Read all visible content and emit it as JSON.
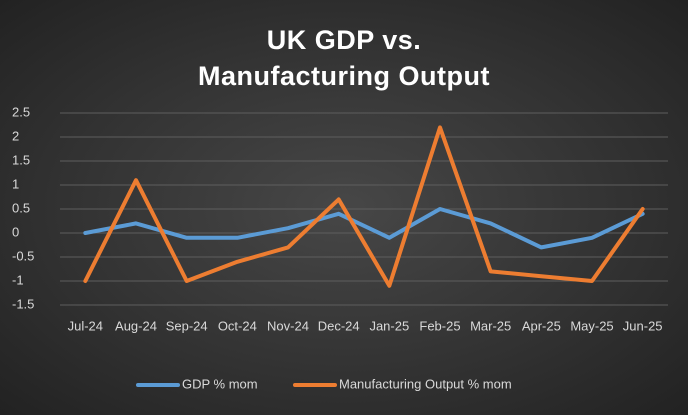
{
  "chart_data": {
    "type": "line",
    "title": "UK GDP vs. Manufacturing Output",
    "categories": [
      "Jul-24",
      "Aug-24",
      "Sep-24",
      "Oct-24",
      "Nov-24",
      "Dec-24",
      "Jan-25",
      "Feb-25",
      "Mar-25",
      "Apr-25",
      "May-25",
      "Jun-25"
    ],
    "series": [
      {
        "name": "GDP % mom",
        "color": "#5b9bd5",
        "values": [
          0,
          0.2,
          -0.1,
          -0.1,
          0.1,
          0.4,
          -0.1,
          0.5,
          0.2,
          -0.3,
          -0.1,
          0.4
        ]
      },
      {
        "name": "Manufacturing Output % mom",
        "color": "#ed7d31",
        "values": [
          -1.0,
          1.1,
          -1.0,
          -0.6,
          -0.3,
          0.7,
          -1.1,
          2.2,
          -0.8,
          -0.9,
          -1.0,
          0.5
        ]
      }
    ],
    "ylim": [
      -1.5,
      2.5
    ],
    "yticks": [
      -1.5,
      -1,
      -0.5,
      0,
      0.5,
      1,
      1.5,
      2,
      2.5
    ],
    "grid": true,
    "legend": "bottom"
  }
}
